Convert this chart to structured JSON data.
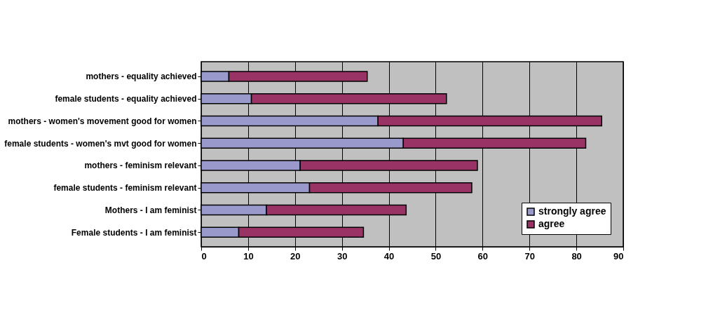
{
  "chart_data": {
    "type": "bar",
    "orientation": "horizontal",
    "stacked": true,
    "categories": [
      "mothers - equality achieved",
      "female students - equality achieved",
      "mothers - women's movement good for women",
      "female students - women's mvt good for women",
      "mothers - feminism relevant",
      "female students - feminism relevant",
      "Mothers - I am feminist",
      "Female students - I am feminist"
    ],
    "series": [
      {
        "name": "strongly agree",
        "color": "#9999cc",
        "values": [
          5.9,
          10.7,
          37.7,
          43.1,
          21.1,
          23.1,
          13.9,
          8.0
        ]
      },
      {
        "name": "agree",
        "color": "#993366",
        "values": [
          29.5,
          41.6,
          47.7,
          38.9,
          37.8,
          34.6,
          29.8,
          26.6
        ]
      }
    ],
    "xlim": [
      0,
      90
    ],
    "xticks": [
      0,
      10,
      20,
      30,
      40,
      50,
      60,
      70,
      80,
      90
    ],
    "grid": "x",
    "legend": "bottom right"
  }
}
